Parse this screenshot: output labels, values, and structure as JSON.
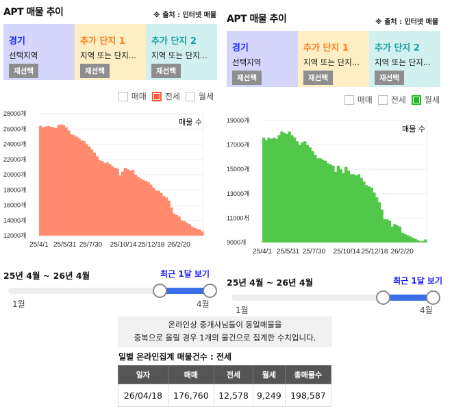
{
  "panels": [
    {
      "title": "APT 매물 추이",
      "source": "※ 출처 : 인터넷 매물",
      "regions": [
        {
          "name": "경기",
          "sub": "선택지역",
          "button": "재선택",
          "bg": "#d4d6fc",
          "color": "#1a2bff"
        },
        {
          "name": "추가 단지 1",
          "sub": "지역 또는 단지...",
          "button": "재선택",
          "bg": "#fdefc3",
          "color": "#ff7a1a"
        },
        {
          "name": "추가 단지 2",
          "sub": "지역 또는 단지...",
          "button": "재선택",
          "bg": "#d2f0ef",
          "color": "#15a0a0"
        }
      ],
      "legend": [
        {
          "label": "매매",
          "checked": false
        },
        {
          "label": "전세",
          "checked": true,
          "color": "#ff5a3a"
        },
        {
          "label": "월세",
          "checked": false
        }
      ],
      "slider": {
        "range_label": "25년 4월 ~ 26년 4월",
        "recent_label": "최근 1달 보기",
        "min_label": "1월",
        "max_label": "4월",
        "start_fraction": 0.75,
        "end_fraction": 1.0
      }
    },
    {
      "title": "APT 매물 추이",
      "source": "※ 출처 : 인터넷 매물",
      "regions": [
        {
          "name": "경기",
          "sub": "선택지역",
          "button": "재선택",
          "bg": "#d4d6fc",
          "color": "#1a2bff"
        },
        {
          "name": "추가 단지 1",
          "sub": "지역 또는 단지...",
          "button": "재선택",
          "bg": "#fdefc3",
          "color": "#ff7a1a"
        },
        {
          "name": "추가 단지 2",
          "sub": "지역 또는 단지...",
          "button": "재선택",
          "bg": "#d2f0ef",
          "color": "#15a0a0"
        }
      ],
      "legend": [
        {
          "label": "매매",
          "checked": false
        },
        {
          "label": "전세",
          "checked": false
        },
        {
          "label": "월세",
          "checked": true,
          "color": "#1fb81f"
        }
      ],
      "slider": {
        "range_label": "25년 4월 ~ 26년 4월",
        "recent_label": "최근 1달 보기",
        "min_label": "1월",
        "max_label": "4월",
        "start_fraction": 0.75,
        "end_fraction": 1.0
      }
    }
  ],
  "chart_data": [
    {
      "type": "area",
      "series_label": "매물 수",
      "color": "#ff8a6e",
      "x_start": "25/4/1",
      "x_end": "26/4/18",
      "x_ticks": [
        "25/4/1",
        "25/5/31",
        "25/7/30",
        "25/10/14",
        "25/12/18",
        "26/2/20"
      ],
      "y_ticks": [
        "12000개",
        "14000개",
        "16000개",
        "18000개",
        "20000개",
        "22000개",
        "24000개",
        "26000개",
        "28000개"
      ],
      "ylim": [
        12000,
        28000
      ],
      "grid": true,
      "values": [
        26400,
        26200,
        26300,
        26400,
        26300,
        26200,
        26100,
        26500,
        26600,
        26500,
        26200,
        25800,
        25300,
        25200,
        25000,
        24800,
        24500,
        24400,
        24000,
        23700,
        23300,
        22900,
        22400,
        21900,
        21800,
        21500,
        21600,
        21400,
        21100,
        20900,
        20800,
        19900,
        20400,
        20900,
        20700,
        20500,
        20600,
        20000,
        19700,
        19500,
        19300,
        19200,
        19000,
        18700,
        18300,
        17900,
        17900,
        17600,
        17200,
        17000,
        16600,
        15700,
        14900,
        14700,
        14500,
        14000,
        13900,
        13700,
        13500,
        13200,
        13000,
        12900,
        12800,
        12578
      ]
    },
    {
      "type": "area",
      "series_label": "매물 수",
      "color": "#52c84a",
      "x_start": "25/4/1",
      "x_end": "26/4/18",
      "x_ticks": [
        "25/4/1",
        "25/5/31",
        "25/7/30",
        "25/10/14",
        "25/12/18",
        "26/2/20"
      ],
      "y_ticks": [
        "9000개",
        "11000개",
        "13000개",
        "15000개",
        "17000개",
        "19000개"
      ],
      "ylim": [
        9000,
        19000
      ],
      "grid": true,
      "values": [
        17600,
        17400,
        17600,
        17500,
        17600,
        17500,
        17800,
        18100,
        18000,
        17900,
        18100,
        17800,
        17600,
        17300,
        17000,
        17200,
        17300,
        17000,
        16800,
        16500,
        16200,
        15900,
        15900,
        15800,
        15700,
        15500,
        15400,
        15300,
        14800,
        15300,
        15000,
        14700,
        15200,
        14900,
        14600,
        14600,
        14500,
        14600,
        14300,
        14000,
        13700,
        13600,
        13500,
        13100,
        12700,
        12300,
        11700,
        10900,
        10900,
        10800,
        10300,
        10500,
        10400,
        10300,
        9800,
        9700,
        9600,
        9500,
        9400,
        9300,
        9200,
        9100,
        9100,
        9249
      ]
    }
  ],
  "notice": {
    "line1": "온라인상 중개사님들이 동일매물을",
    "line2": "중복으로 올릴 경우 1개의 물건으로 집계한 수치입니다."
  },
  "table": {
    "title": "일별 온라인집계 매물건수 : 전세",
    "headers": [
      "일자",
      "매매",
      "전세",
      "월세",
      "총매물수"
    ],
    "rows": [
      [
        "26/04/18",
        "176,760",
        "12,578",
        "9,249",
        "198,587"
      ]
    ]
  }
}
